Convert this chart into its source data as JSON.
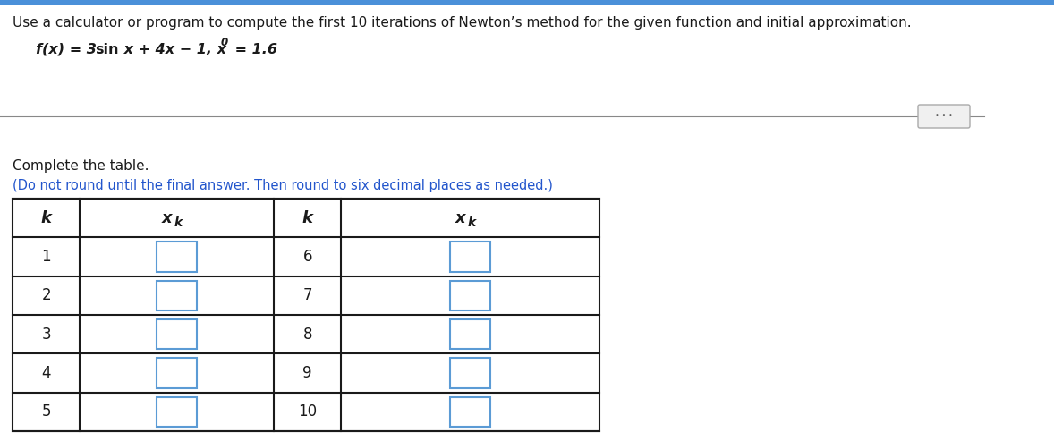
{
  "title_line1": "Use a calculator or program to compute the first 10 iterations of Newton’s method for the given function and initial approximation.",
  "complete_text": "Complete the table.",
  "instruction_text": "(Do not round until the final answer. Then round to six decimal places as needed.)",
  "left_k": [
    1,
    2,
    3,
    4,
    5
  ],
  "right_k": [
    6,
    7,
    8,
    9,
    10
  ],
  "bg_color": "#ffffff",
  "table_border_color": "#1a1a1a",
  "input_box_color": "#5b9bd5",
  "header_text_color": "#1a1a1a",
  "body_text_color": "#1a1a1a",
  "blue_text_color": "#2255cc",
  "title_color": "#1a1a1a",
  "separator_line_color": "#888888",
  "top_bar_color": "#4a90d9",
  "dots_button_bg": "#f0f0f0",
  "dots_button_border": "#aaaaaa",
  "title_fontsize": 11.0,
  "formula_fontsize": 11.5,
  "complete_fontsize": 11.0,
  "instruction_fontsize": 10.5,
  "table_header_fontsize": 12,
  "table_body_fontsize": 12
}
